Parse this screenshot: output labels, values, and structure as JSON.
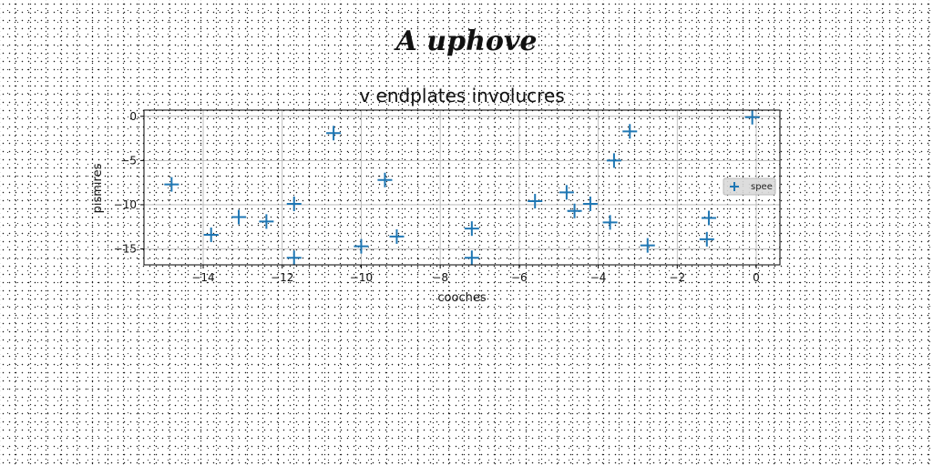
{
  "suptitle": "A uphove",
  "chart_data": {
    "type": "scatter",
    "title": "v endplates involucres",
    "xlabel": "cooches",
    "ylabel": "pismires",
    "xlim": [
      -15.5,
      0.6
    ],
    "ylim": [
      -16.8,
      0.7
    ],
    "grid": true,
    "xticks": [
      -14,
      -12,
      -10,
      -8,
      -6,
      -4,
      -2,
      0
    ],
    "yticks": [
      0,
      -5,
      -10,
      -15
    ],
    "legend_position": "right",
    "series": [
      {
        "name": "spee",
        "color": "#1f77b4",
        "marker": "plus",
        "x": [
          -14.8,
          -13.8,
          -13.1,
          -12.4,
          -11.7,
          -11.7,
          -10.7,
          -10.0,
          -9.4,
          -9.1,
          -7.2,
          -7.2,
          -5.6,
          -4.8,
          -4.6,
          -4.2,
          -3.7,
          -3.6,
          -3.2,
          -2.75,
          -1.25,
          -1.2,
          -0.1
        ],
        "y": [
          -7.7,
          -13.4,
          -11.4,
          -11.9,
          -9.9,
          -16.0,
          -1.9,
          -14.7,
          -7.2,
          -13.6,
          -12.7,
          -16.0,
          -9.6,
          -8.6,
          -10.7,
          -9.9,
          -12.0,
          -5.0,
          -1.7,
          -14.6,
          -13.9,
          -11.5,
          -0.1
        ]
      }
    ]
  }
}
